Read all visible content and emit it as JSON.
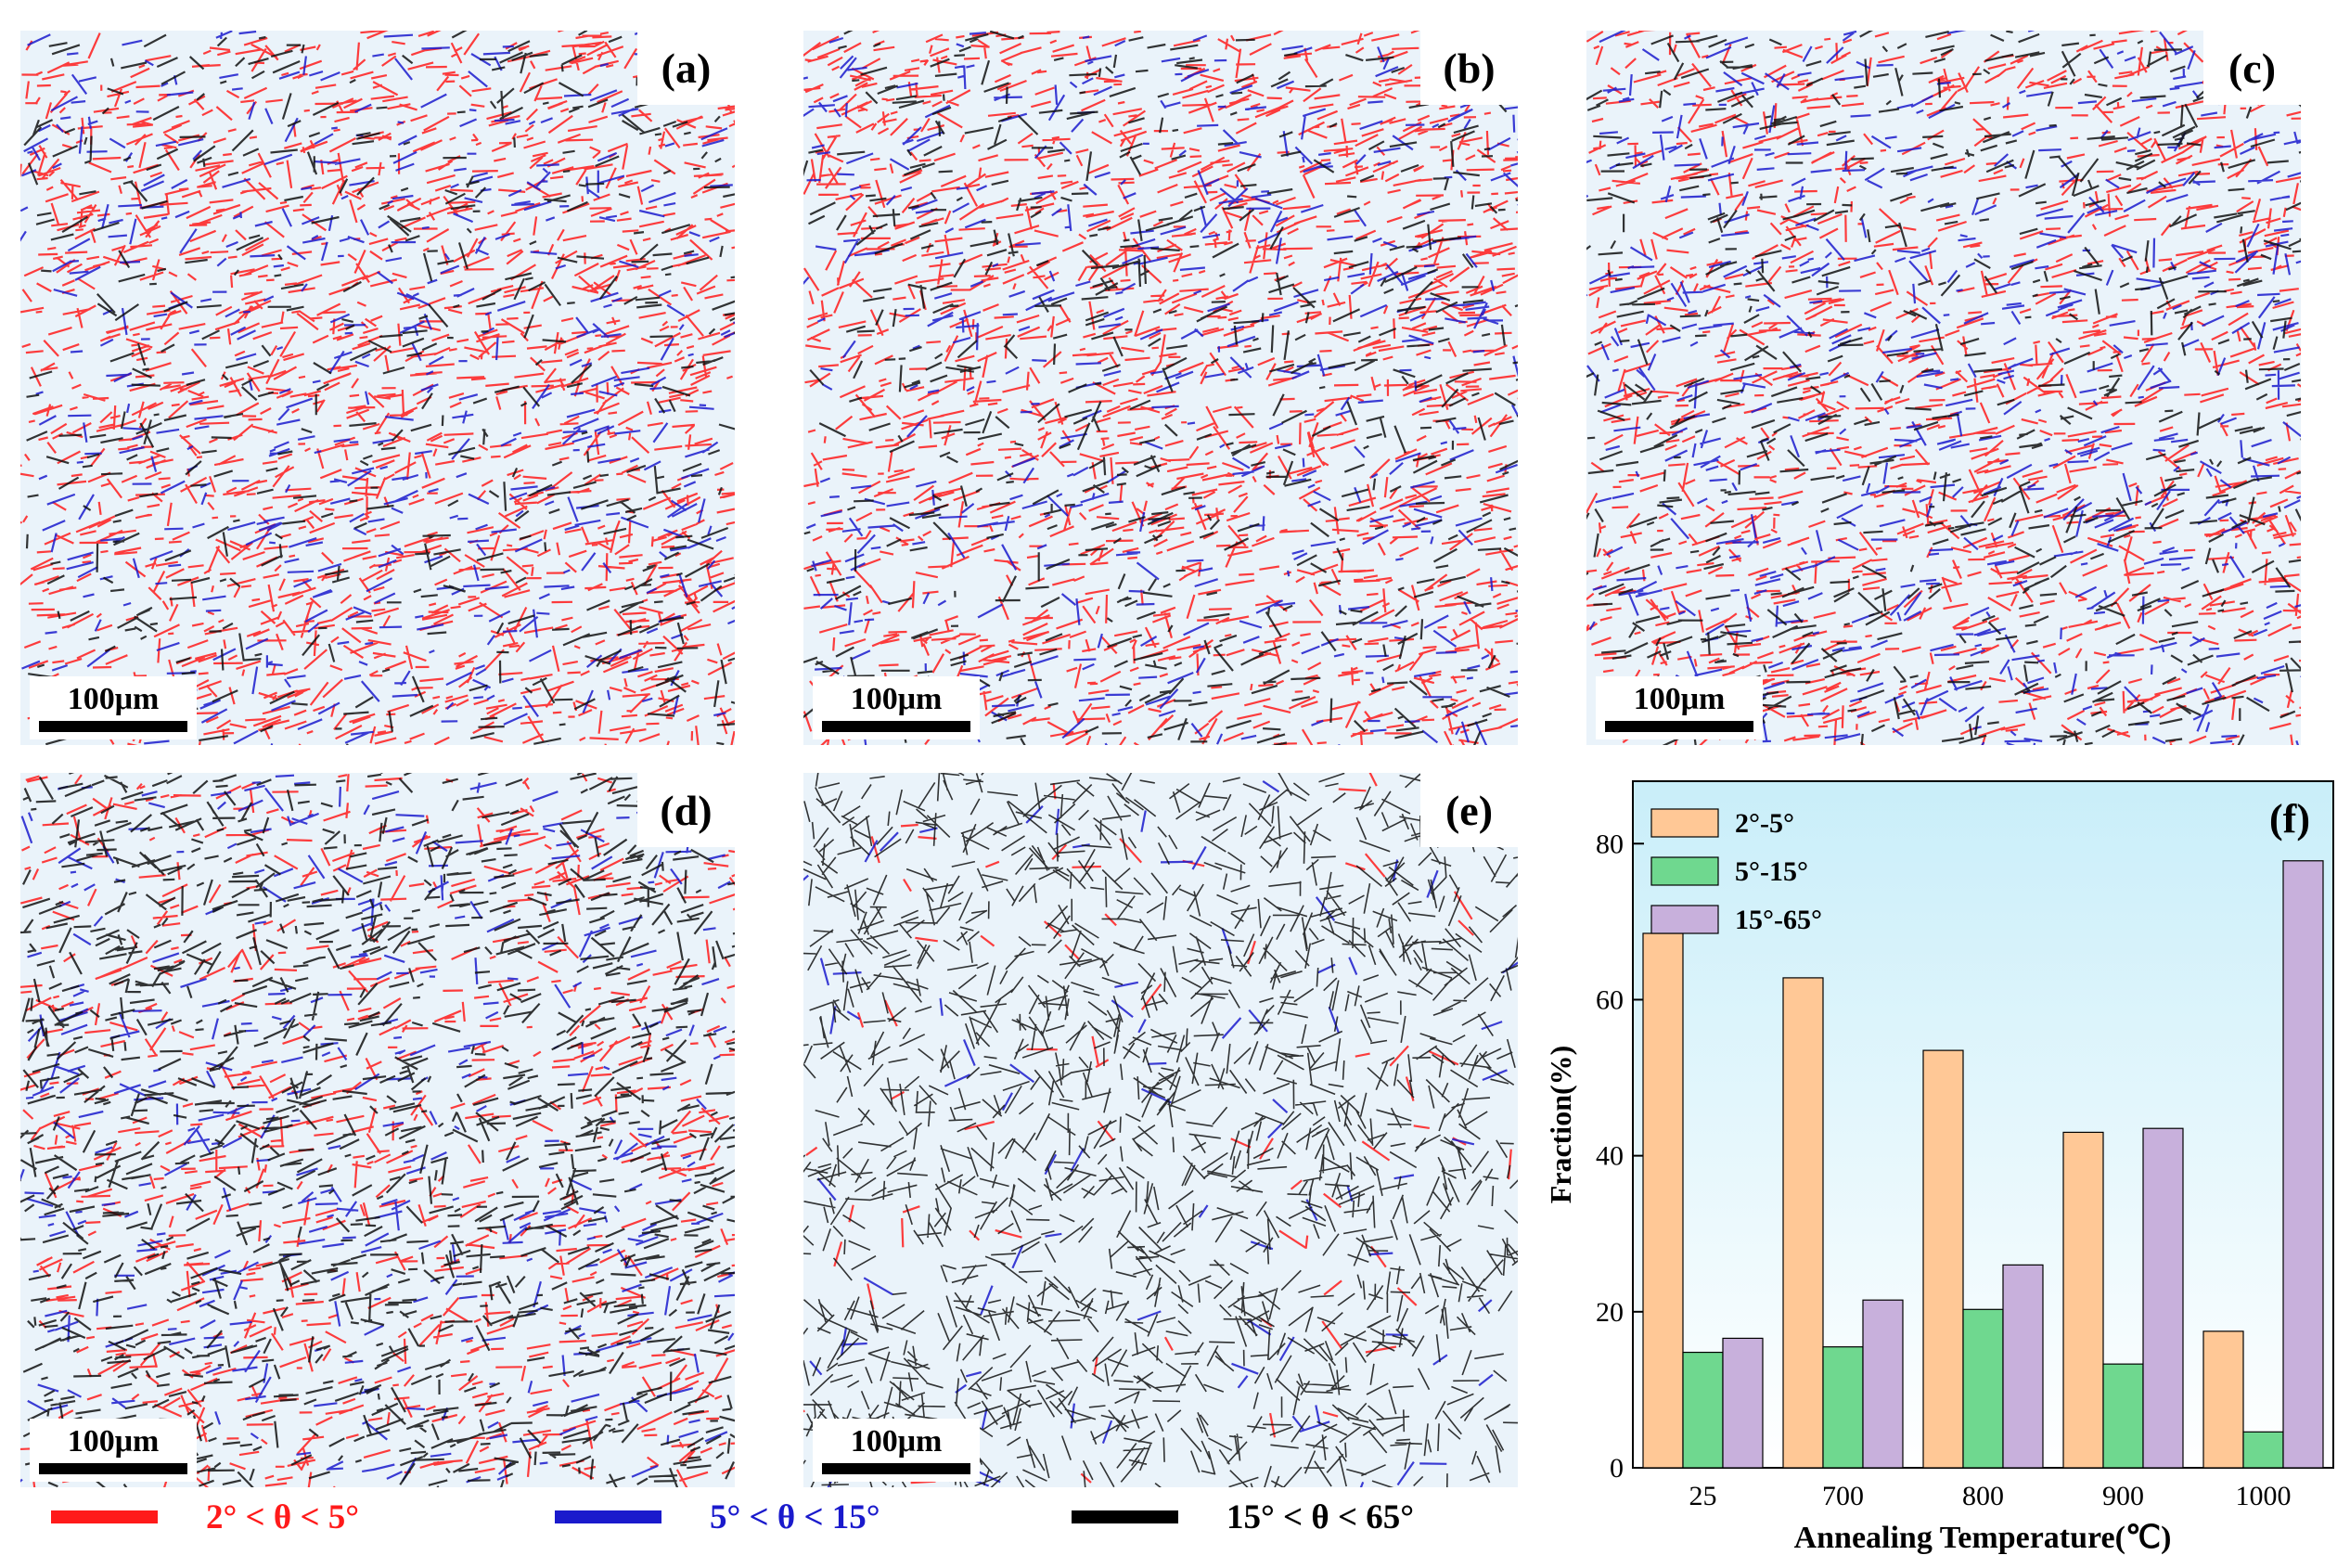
{
  "panels": [
    {
      "label": "(a)",
      "scale": "100μm"
    },
    {
      "label": "(b)",
      "scale": "100μm"
    },
    {
      "label": "(c)",
      "scale": "100μm"
    },
    {
      "label": "(d)",
      "scale": "100μm"
    },
    {
      "label": "(e)",
      "scale": "100μm"
    }
  ],
  "legend": [
    {
      "text": "2° < θ < 5°",
      "color": "#ff1a1a"
    },
    {
      "text": "5° < θ < 15°",
      "color": "#1a1acc"
    },
    {
      "text": "15° < θ < 65°",
      "color": "#000000"
    }
  ],
  "chart_data": {
    "type": "bar",
    "panel_label": "(f)",
    "categories": [
      "25",
      "700",
      "800",
      "900",
      "1000"
    ],
    "series": [
      {
        "name": "2°-5°",
        "values": [
          68.5,
          62.8,
          53.5,
          43.0,
          17.5
        ],
        "color": "#ffc896"
      },
      {
        "name": "5°-15°",
        "values": [
          14.8,
          15.5,
          20.3,
          13.3,
          4.6
        ],
        "color": "#6fd88f"
      },
      {
        "name": "15°-65°",
        "values": [
          16.6,
          21.5,
          26.0,
          43.5,
          77.8
        ],
        "color": "#c8b0dc"
      }
    ],
    "xlabel": "Annealing Temperature(℃)",
    "ylabel": "Fraction(%)",
    "ylim": [
      0,
      88
    ],
    "yticks": [
      0,
      20,
      40,
      60,
      80
    ],
    "legend_position": "top-left",
    "grid": false
  }
}
